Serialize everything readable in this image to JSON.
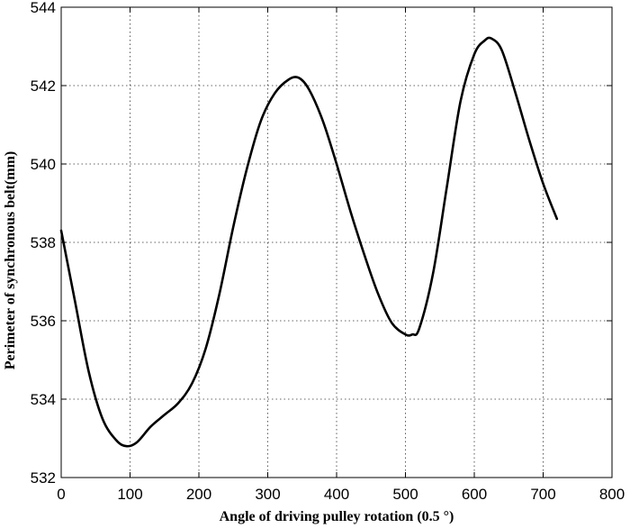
{
  "chart_data": {
    "type": "line",
    "title": "",
    "xlabel": "Angle of driving pulley rotation (0.5 °)",
    "ylabel": "Perimeter of synchronous belt(mm)",
    "xlim": [
      0,
      800
    ],
    "ylim": [
      532,
      544
    ],
    "xticks": [
      0,
      100,
      200,
      300,
      400,
      500,
      600,
      700,
      800
    ],
    "yticks": [
      532,
      534,
      536,
      538,
      540,
      542,
      544
    ],
    "grid": true,
    "grid_style": "dotted",
    "line_color": "#000000",
    "series": [
      {
        "x": [
          0,
          20,
          40,
          60,
          80,
          95,
          110,
          130,
          150,
          170,
          190,
          210,
          230,
          250,
          270,
          290,
          310,
          330,
          345,
          360,
          380,
          400,
          420,
          440,
          460,
          480,
          500,
          510,
          520,
          540,
          560,
          580,
          600,
          615,
          625,
          640,
          660,
          680,
          700,
          720
        ],
        "y": [
          538.3,
          536.5,
          534.7,
          533.5,
          532.95,
          532.8,
          532.9,
          533.3,
          533.6,
          533.9,
          534.4,
          535.3,
          536.7,
          538.4,
          539.9,
          541.1,
          541.8,
          542.15,
          542.2,
          541.9,
          541.1,
          540.0,
          538.8,
          537.7,
          536.7,
          535.95,
          535.65,
          535.65,
          535.8,
          537.2,
          539.4,
          541.6,
          542.8,
          543.15,
          543.2,
          542.9,
          541.8,
          540.6,
          539.5,
          538.6
        ]
      }
    ]
  }
}
